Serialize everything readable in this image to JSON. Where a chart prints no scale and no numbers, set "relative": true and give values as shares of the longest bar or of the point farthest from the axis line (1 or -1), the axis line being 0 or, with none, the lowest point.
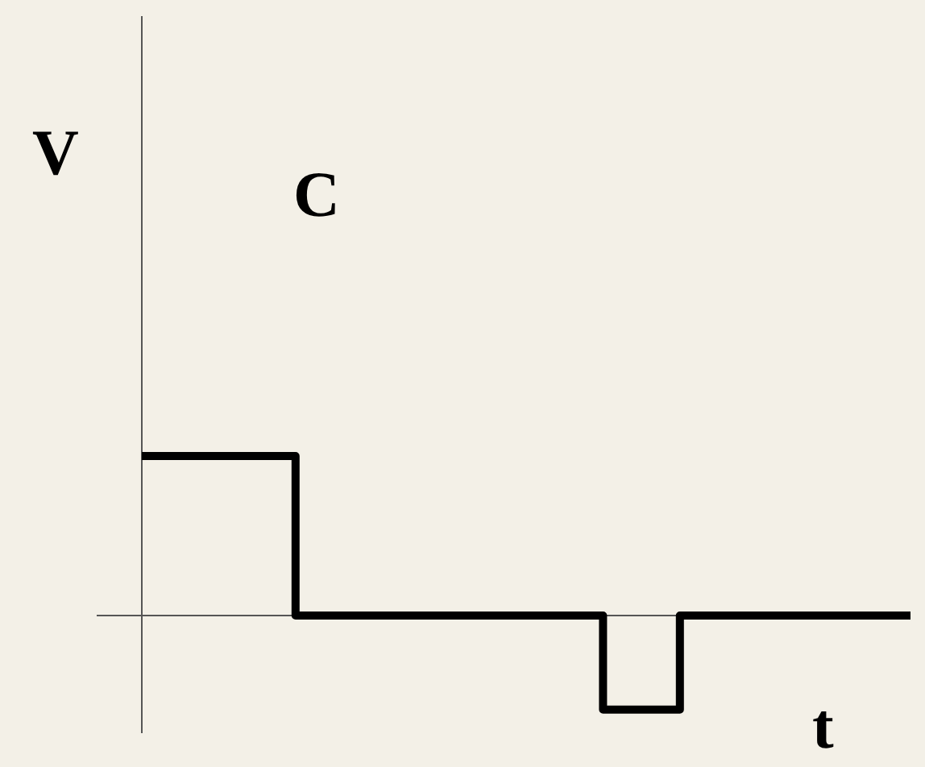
{
  "chart_data": {
    "type": "step",
    "title": "C",
    "xlabel": "t",
    "ylabel": "V",
    "relative": true,
    "categories": [
      null,
      null,
      null,
      null,
      null,
      null,
      null,
      null,
      null,
      null,
      null
    ],
    "series": [
      {
        "color": "#000000",
        "values": [
          1,
          1,
          0,
          0,
          0,
          0,
          -0.59,
          0,
          0,
          0,
          0
        ]
      }
    ]
  }
}
